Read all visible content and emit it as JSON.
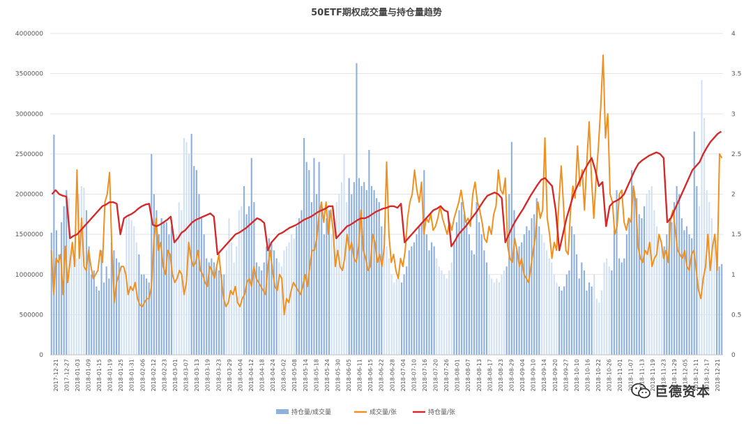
{
  "chart_data": {
    "type": "bar+line",
    "title": "50ETF期权成交量与持仓量趋势",
    "colors": {
      "bar": "#8fb1de",
      "bar_light": "#d3e2f3",
      "volume": "#f0901e",
      "oi": "#d42a2a",
      "grid": "#e3e3e3"
    },
    "left_axis": {
      "min": 0,
      "max": 4000000,
      "ticks": [
        "0",
        "500000",
        "1000000",
        "1500000",
        "2000000",
        "2500000",
        "3000000",
        "3500000",
        "4000000"
      ]
    },
    "right_axis": {
      "min": 0,
      "max": 4,
      "ticks": [
        "0",
        "0.5",
        "1",
        "1.5",
        "2",
        "2.5",
        "3",
        "3.5",
        "4"
      ]
    },
    "x_tick_labels": [
      "2017-12-21",
      "2017-12-27",
      "2018-01-03",
      "2018-01-09",
      "2018-01-15",
      "2018-01-19",
      "2018-01-25",
      "2018-01-31",
      "2018-02-06",
      "2018-02-12",
      "2018-02-23",
      "2018-03-01",
      "2018-03-07",
      "2018-03-13",
      "2018-03-19",
      "2018-03-23",
      "2018-03-29",
      "2018-04-04",
      "2018-04-12",
      "2018-04-18",
      "2018-04-24",
      "2018-05-02",
      "2018-05-08",
      "2018-05-14",
      "2018-05-18",
      "2018-05-24",
      "2018-05-30",
      "2018-06-05",
      "2018-06-11",
      "2018-06-15",
      "2018-06-22",
      "2018-06-28",
      "2018-07-04",
      "2018-07-10",
      "2018-07-16",
      "2018-07-20",
      "2018-07-26",
      "2018-08-01",
      "2018-08-07",
      "2018-08-13",
      "2018-08-17",
      "2018-08-23",
      "2018-08-29",
      "2018-09-04",
      "2018-09-10",
      "2018-09-14",
      "2018-09-20",
      "2018-09-27",
      "2018-10-10",
      "2018-10-16",
      "2018-10-22",
      "2018-10-26",
      "2018-11-01",
      "2018-11-07",
      "2018-11-13",
      "2018-11-19",
      "2018-11-23",
      "2018-11-29",
      "2018-12-05",
      "2018-12-11",
      "2018-12-17",
      "2018-12-21"
    ],
    "series": [
      {
        "name": "持仓量/成交量",
        "axis": "left",
        "kind": "bar",
        "values": [
          1520000,
          2740000,
          1550000,
          1250000,
          1650000,
          1850000,
          2050000,
          1950000,
          1350000,
          1150000,
          1200000,
          2000000,
          2100000,
          2080000,
          1800000,
          1350000,
          1000000,
          1050000,
          850000,
          800000,
          1300000,
          900000,
          1100000,
          950000,
          1400000,
          1300000,
          1200000,
          1150000,
          1100000,
          1050000,
          1700000,
          1750000,
          1680000,
          1600000,
          1400000,
          1250000,
          1000000,
          1000000,
          950000,
          900000,
          2500000,
          2000000,
          1800000,
          1500000,
          1700000,
          1650000,
          1650000,
          1500000,
          1600000,
          1500000,
          1500000,
          1900000,
          1800000,
          2700000,
          2650000,
          2500000,
          2750000,
          2350000,
          2300000,
          2000000,
          1700000,
          1500000,
          1200000,
          1150000,
          1200000,
          1150000,
          1100000,
          1050000,
          1000000,
          1000000,
          1300000,
          1700000,
          1400000,
          1150000,
          1350000,
          1800000,
          1850000,
          2100000,
          1750000,
          1850000,
          2450000,
          1900000,
          1150000,
          1100000,
          1050000,
          1150000,
          1350000,
          1450000,
          1400000,
          1300000,
          1200000,
          1150000,
          1100000,
          1300000,
          1350000,
          1400000,
          1500000,
          1450000,
          1600000,
          1700000,
          1800000,
          2700000,
          2400000,
          2300000,
          1900000,
          2450000,
          2000000,
          2400000,
          1900000,
          1500000,
          1700000,
          1800000,
          1500000,
          1650000,
          1900000,
          2000000,
          2150000,
          2500000,
          1900000,
          2200000,
          2000000,
          2150000,
          3630000,
          2200000,
          2100000,
          2150000,
          2050000,
          2550000,
          2100000,
          2050000,
          1950000,
          1900000,
          1600000,
          1500000,
          1350000,
          1200000,
          1000000,
          900000,
          950000,
          950000,
          900000,
          1000000,
          1100000,
          1300000,
          1350000,
          1400000,
          1500000,
          1600000,
          1650000,
          2300000,
          1500000,
          1300000,
          1400000,
          1350000,
          1200000,
          1100000,
          1050000,
          1000000,
          950000,
          1050000,
          1150000,
          1400000,
          1650000,
          1800000,
          1900000,
          1750000,
          1650000,
          1500000,
          1300000,
          1250000,
          1900000,
          1650000,
          1500000,
          1300000,
          1150000,
          1000000,
          950000,
          900000,
          950000,
          900000,
          1000000,
          1050000,
          1100000,
          2000000,
          2650000,
          1800000,
          1300000,
          1350000,
          1400000,
          1500000,
          1600000,
          1550000,
          1700000,
          1750000,
          1950000,
          1600000,
          1500000,
          1400000,
          1300000,
          1200000,
          1150000,
          1000000,
          900000,
          850000,
          800000,
          850000,
          1000000,
          1050000,
          1600000,
          1500000,
          1250000,
          950000,
          1150000,
          1050000,
          800000,
          900000,
          850000,
          1000000,
          700000,
          650000,
          800000,
          1150000,
          1200000,
          1100000,
          1050000,
          1550000,
          2050000,
          1200000,
          1150000,
          1200000,
          1500000,
          1700000,
          2300000,
          2050000,
          1950000,
          1750000,
          1700000,
          1850000,
          2000000,
          2050000,
          2100000,
          1800000,
          1600000,
          1500000,
          1400000,
          1350000,
          1500000,
          1700000,
          1650000,
          1900000,
          2100000,
          2000000,
          1700000,
          1550000,
          1600000,
          1500000,
          1450000,
          2780000,
          2100000,
          1850000,
          3420000,
          2950000,
          2050000,
          1900000,
          1700000,
          1500000,
          1200000,
          1100000,
          1130000
        ]
      },
      {
        "name": "成交量/张",
        "axis": "left",
        "kind": "line",
        "values": [
          1300000,
          750000,
          1200000,
          1150000,
          1250000,
          750000,
          1350000,
          900000,
          1150000,
          1400000,
          1100000,
          2300000,
          1200000,
          1700000,
          1100000,
          1050000,
          1300000,
          1100000,
          950000,
          1000000,
          1050000,
          1300000,
          1150000,
          1900000,
          2000000,
          2270000,
          1300000,
          650000,
          900000,
          1000000,
          1100000,
          1100000,
          1000000,
          750000,
          850000,
          800000,
          900000,
          700000,
          620000,
          600000,
          650000,
          700000,
          700000,
          850000,
          1400000,
          1700000,
          1300000,
          1400000,
          1100000,
          1000000,
          1300000,
          1250000,
          1000000,
          900000,
          950000,
          1050000,
          1000000,
          750000,
          900000,
          1400000,
          1200000,
          1100000,
          1150000,
          1300000,
          1050000,
          1000000,
          900000,
          850000,
          1100000,
          1050000,
          950000,
          1100000,
          1250000,
          950000,
          700000,
          600000,
          650000,
          800000,
          750000,
          850000,
          650000,
          600000,
          700000,
          750000,
          900000,
          950000,
          850000,
          1100000,
          950000,
          900000,
          850000,
          800000,
          750000,
          1100000,
          1300000,
          1050000,
          850000,
          800000,
          1000000,
          950000,
          500000,
          700000,
          650000,
          800000,
          900000,
          850000,
          800000,
          750000,
          850000,
          1000000,
          850000,
          1100000,
          1300000,
          1300000,
          1450000,
          1750000,
          1900000,
          1650000,
          1900000,
          1500000,
          1800000,
          1550000,
          1100000,
          1300000,
          1100000,
          1050000,
          1200000,
          1500000,
          1300000,
          1400000,
          1200000,
          1150000,
          1350000,
          1800000,
          1300000,
          1200000,
          1050000,
          1100000,
          1500000,
          1400000,
          1150000,
          1250000,
          1100000,
          1350000,
          2400000,
          1500000,
          1150000,
          1250000,
          1050000,
          950000,
          1200000,
          1100000,
          1300000,
          1700000,
          1900000,
          2000000,
          2300000,
          2050000,
          1900000,
          2150000,
          1500000,
          1700000,
          1650000,
          1750000,
          1550000,
          1600000,
          1700000,
          1850000,
          1700000,
          1600000,
          1500000,
          1650000,
          1550000,
          1700000,
          1800000,
          1900000,
          2050000,
          1850000,
          1650000,
          1700000,
          1600000,
          2000000,
          2150000,
          1900000,
          1800000,
          1650000,
          1450000,
          1400000,
          1600000,
          1500000,
          1750000,
          1850000,
          2300000,
          2050000,
          2000000,
          2200000,
          1350000,
          1200000,
          1150000,
          1450000,
          1300000,
          1100000,
          1200000,
          1000000,
          950000,
          900000,
          1100000,
          1300000,
          1500000,
          1900000,
          1700000,
          1800000,
          2700000,
          1700000,
          1500000,
          1200000,
          1400000,
          1300000,
          1900000,
          2350000,
          1850000,
          1300000,
          1250000,
          1800000,
          2100000,
          1950000,
          2600000,
          2100000,
          2300000,
          1800000,
          2400000,
          2900000,
          2200000,
          1700000,
          2200000,
          2600000,
          3100000,
          3730000,
          2700000,
          3000000,
          2000000,
          1900000,
          1500000,
          1600000,
          2000000,
          2050000,
          1650000,
          1550000,
          1700000,
          1650000,
          2100000,
          1900000,
          1350000,
          1200000,
          1150000,
          1300000,
          1250000,
          1400000,
          1100000,
          1200000,
          1250000,
          1500000,
          1400000,
          1200000,
          1300000,
          1150000,
          1700000,
          1800000,
          1550000,
          1300000,
          1250000,
          1200000,
          1300000,
          1100000,
          1050000,
          1250000,
          1300000,
          1050000,
          800000,
          700000,
          950000,
          1100000,
          1500000,
          1050000,
          1350000,
          1500000,
          1050000,
          2500000,
          2450000
        ]
      },
      {
        "name": "持仓量/张",
        "axis": "right",
        "kind": "line",
        "values": [
          2.0,
          2.05,
          2.0,
          1.98,
          1.97,
          1.45,
          1.48,
          1.5,
          1.55,
          1.6,
          1.65,
          1.7,
          1.75,
          1.8,
          1.85,
          1.87,
          1.9,
          1.9,
          1.88,
          1.5,
          1.7,
          1.73,
          1.75,
          1.78,
          1.82,
          1.85,
          1.87,
          1.88,
          1.62,
          1.6,
          1.62,
          1.65,
          1.68,
          1.72,
          1.4,
          1.45,
          1.52,
          1.55,
          1.6,
          1.65,
          1.68,
          1.7,
          1.72,
          1.74,
          1.76,
          1.72,
          1.25,
          1.3,
          1.35,
          1.4,
          1.45,
          1.5,
          1.52,
          1.55,
          1.58,
          1.62,
          1.66,
          1.7,
          1.68,
          1.64,
          1.3,
          1.4,
          1.45,
          1.5,
          1.52,
          1.55,
          1.58,
          1.6,
          1.62,
          1.65,
          1.68,
          1.7,
          1.72,
          1.75,
          1.78,
          1.8,
          1.82,
          1.85,
          1.85,
          1.45,
          1.5,
          1.55,
          1.6,
          1.62,
          1.65,
          1.68,
          1.7,
          1.7,
          1.72,
          1.75,
          1.78,
          1.8,
          1.82,
          1.83,
          1.85,
          1.85,
          1.83,
          1.88,
          1.4,
          1.45,
          1.5,
          1.55,
          1.6,
          1.65,
          1.7,
          1.75,
          1.8,
          1.82,
          1.85,
          1.8,
          1.78,
          1.35,
          1.42,
          1.5,
          1.55,
          1.6,
          1.66,
          1.72,
          1.78,
          1.85,
          1.92,
          1.98,
          2.0,
          2.02,
          2.0,
          1.95,
          1.4,
          1.5,
          1.6,
          1.68,
          1.75,
          1.82,
          1.9,
          1.98,
          2.05,
          2.12,
          2.18,
          2.2,
          2.15,
          2.1,
          1.8,
          1.3,
          1.5,
          1.7,
          1.85,
          2.0,
          2.1,
          2.2,
          2.3,
          2.38,
          2.45,
          2.3,
          2.1,
          2.15,
          1.6,
          1.85,
          1.9,
          1.92,
          1.95,
          2.0,
          2.1,
          2.2,
          2.3,
          2.38,
          2.42,
          2.45,
          2.48,
          2.5,
          2.52,
          2.5,
          2.45,
          1.65,
          1.7,
          1.8,
          1.9,
          2.0,
          2.1,
          2.2,
          2.3,
          2.35,
          2.4,
          2.5,
          2.58,
          2.65,
          2.7,
          2.75,
          2.78
        ]
      }
    ]
  }
}
